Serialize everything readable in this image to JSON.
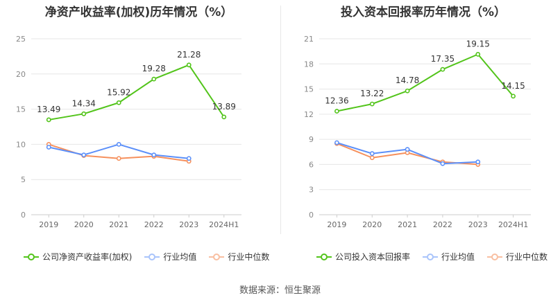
{
  "colors": {
    "primary": "#52c41a",
    "industry_avg": "#5b8ff9",
    "industry_median": "#f6905c"
  },
  "source": "数据来源：恒生聚源",
  "chart_data": [
    {
      "type": "line",
      "title": "净资产收益率(加权)历年情况（%）",
      "categories": [
        "2019",
        "2020",
        "2021",
        "2022",
        "2023",
        "2024H1"
      ],
      "yticks": [
        "0",
        "5",
        "10",
        "15",
        "20",
        "25"
      ],
      "ylim": [
        0,
        25
      ],
      "grid": true,
      "legend_position": "bottom",
      "series": [
        {
          "name": "公司净资产收益率(加权)",
          "color": "#52c41a",
          "values": [
            13.49,
            14.34,
            15.92,
            19.28,
            21.28,
            13.89
          ],
          "labels": [
            "13.49",
            "14.34",
            "15.92",
            "19.28",
            "21.28",
            "13.89"
          ]
        },
        {
          "name": "行业均值",
          "color": "#5b8ff9",
          "values": [
            9.6,
            8.5,
            10.0,
            8.5,
            8.0,
            null
          ]
        },
        {
          "name": "行业中位数",
          "color": "#f6905c",
          "values": [
            10.0,
            8.4,
            8.0,
            8.3,
            7.6,
            null
          ]
        }
      ]
    },
    {
      "type": "line",
      "title": "投入资本回报率历年情况（%）",
      "categories": [
        "2019",
        "2020",
        "2021",
        "2022",
        "2023",
        "2024H1"
      ],
      "yticks": [
        "0",
        "3",
        "6",
        "9",
        "12",
        "15",
        "18",
        "21"
      ],
      "ylim": [
        0,
        21
      ],
      "grid": true,
      "legend_position": "bottom",
      "series": [
        {
          "name": "公司投入资本回报率",
          "color": "#52c41a",
          "values": [
            12.36,
            13.22,
            14.78,
            17.35,
            19.15,
            14.15
          ],
          "labels": [
            "12.36",
            "13.22",
            "14.78",
            "17.35",
            "19.15",
            "14.15"
          ]
        },
        {
          "name": "行业均值",
          "color": "#5b8ff9",
          "values": [
            8.6,
            7.3,
            7.8,
            6.1,
            6.3,
            null
          ]
        },
        {
          "name": "行业中位数",
          "color": "#f6905c",
          "values": [
            8.5,
            6.8,
            7.4,
            6.3,
            6.0,
            null
          ]
        }
      ]
    }
  ]
}
